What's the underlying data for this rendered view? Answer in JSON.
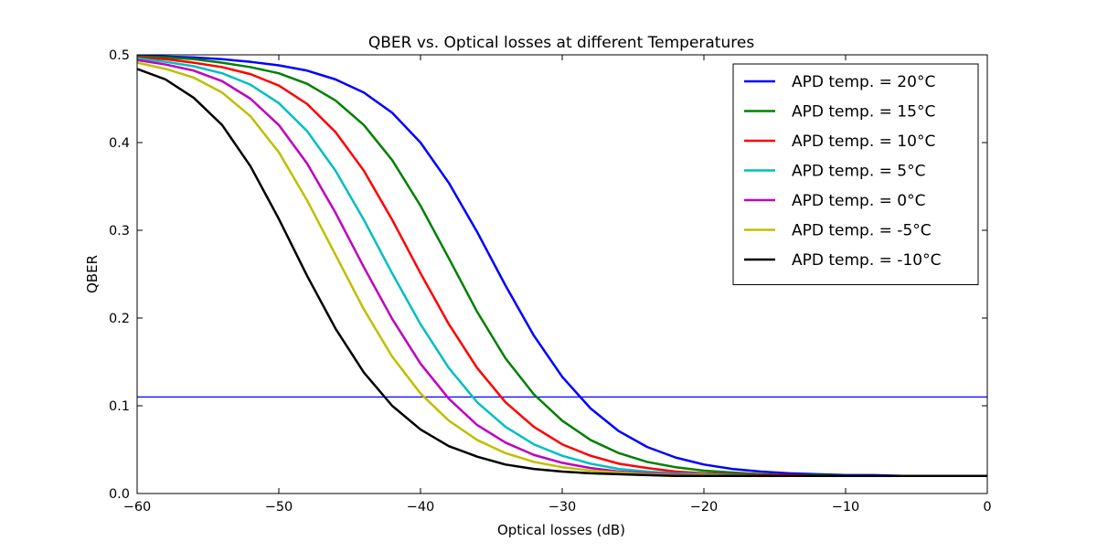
{
  "chart_data": {
    "type": "line",
    "title": "QBER vs. Optical losses at different Temperatures",
    "xlabel": "Optical losses (dB)",
    "ylabel": "QBER",
    "xlim": [
      -60,
      0
    ],
    "ylim": [
      0.0,
      0.5
    ],
    "xticks": [
      -60,
      -50,
      -40,
      -30,
      -20,
      -10,
      0
    ],
    "xtick_labels": [
      "−60",
      "−50",
      "−40",
      "−30",
      "−20",
      "−10",
      "0"
    ],
    "yticks": [
      0.0,
      0.1,
      0.2,
      0.3,
      0.4,
      0.5
    ],
    "ytick_labels": [
      "0.0",
      "0.1",
      "0.2",
      "0.3",
      "0.4",
      "0.5"
    ],
    "grid": false,
    "legend_position": "top-right",
    "x": [
      -60,
      -58,
      -56,
      -54,
      -52,
      -50,
      -48,
      -46,
      -44,
      -42,
      -40,
      -38,
      -36,
      -34,
      -32,
      -30,
      -28,
      -26,
      -24,
      -22,
      -20,
      -18,
      -16,
      -14,
      -12,
      -10,
      -8,
      -6,
      -4,
      -2,
      0
    ],
    "series": [
      {
        "name": "APD temp. = 20°C",
        "color": "#0000ff",
        "values": [
          0.499,
          0.498,
          0.497,
          0.495,
          0.492,
          0.488,
          0.482,
          0.472,
          0.457,
          0.434,
          0.4,
          0.354,
          0.298,
          0.237,
          0.18,
          0.133,
          0.097,
          0.071,
          0.053,
          0.041,
          0.033,
          0.028,
          0.025,
          0.023,
          0.022,
          0.021,
          0.021,
          0.02,
          0.02,
          0.02,
          0.02
        ]
      },
      {
        "name": "APD temp. = 15°C",
        "color": "#008000",
        "values": [
          0.498,
          0.497,
          0.495,
          0.491,
          0.486,
          0.479,
          0.467,
          0.448,
          0.42,
          0.38,
          0.328,
          0.268,
          0.207,
          0.154,
          0.113,
          0.083,
          0.061,
          0.046,
          0.036,
          0.03,
          0.026,
          0.024,
          0.022,
          0.021,
          0.021,
          0.02,
          0.02,
          0.02,
          0.02,
          0.02,
          0.02
        ]
      },
      {
        "name": "APD temp. = 10°C",
        "color": "#ff0000",
        "values": [
          0.497,
          0.495,
          0.491,
          0.486,
          0.478,
          0.465,
          0.444,
          0.412,
          0.368,
          0.312,
          0.251,
          0.193,
          0.143,
          0.104,
          0.076,
          0.056,
          0.043,
          0.034,
          0.029,
          0.025,
          0.023,
          0.022,
          0.021,
          0.021,
          0.02,
          0.02,
          0.02,
          0.02,
          0.02,
          0.02,
          0.02
        ]
      },
      {
        "name": "APD temp. = 5°C",
        "color": "#00bfbf",
        "values": [
          0.496,
          0.492,
          0.487,
          0.479,
          0.466,
          0.445,
          0.413,
          0.368,
          0.312,
          0.251,
          0.193,
          0.143,
          0.104,
          0.076,
          0.056,
          0.043,
          0.034,
          0.028,
          0.025,
          0.023,
          0.022,
          0.021,
          0.02,
          0.02,
          0.02,
          0.02,
          0.02,
          0.02,
          0.02,
          0.02,
          0.02
        ]
      },
      {
        "name": "APD temp. = 0°C",
        "color": "#bf00bf",
        "values": [
          0.494,
          0.489,
          0.482,
          0.47,
          0.45,
          0.42,
          0.376,
          0.32,
          0.258,
          0.199,
          0.148,
          0.108,
          0.078,
          0.058,
          0.044,
          0.035,
          0.029,
          0.025,
          0.023,
          0.022,
          0.021,
          0.02,
          0.02,
          0.02,
          0.02,
          0.02,
          0.02,
          0.02,
          0.02,
          0.02,
          0.02
        ]
      },
      {
        "name": "APD temp. = -5°C",
        "color": "#bfbf00",
        "values": [
          0.491,
          0.484,
          0.474,
          0.457,
          0.43,
          0.389,
          0.334,
          0.272,
          0.21,
          0.156,
          0.114,
          0.083,
          0.061,
          0.046,
          0.036,
          0.03,
          0.026,
          0.024,
          0.022,
          0.021,
          0.021,
          0.02,
          0.02,
          0.02,
          0.02,
          0.02,
          0.02,
          0.02,
          0.02,
          0.02,
          0.02
        ]
      },
      {
        "name": "APD temp. = -10°C",
        "color": "#000000",
        "values": [
          0.484,
          0.472,
          0.451,
          0.42,
          0.373,
          0.313,
          0.248,
          0.188,
          0.138,
          0.1,
          0.073,
          0.054,
          0.042,
          0.033,
          0.028,
          0.025,
          0.023,
          0.022,
          0.021,
          0.02,
          0.02,
          0.02,
          0.02,
          0.02,
          0.02,
          0.02,
          0.02,
          0.02,
          0.02,
          0.02,
          0.02
        ]
      }
    ],
    "threshold_line": {
      "y": 0.11,
      "color": "#0000ff"
    }
  }
}
